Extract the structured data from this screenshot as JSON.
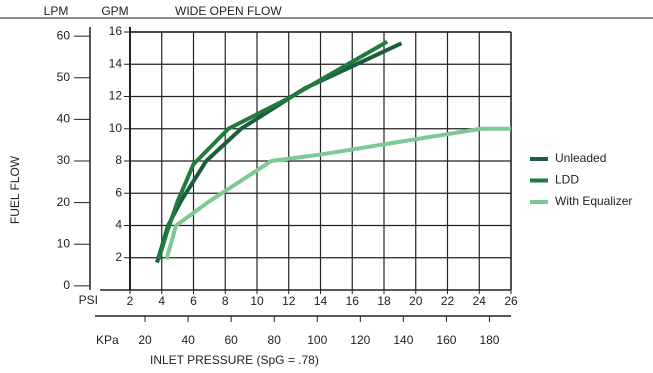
{
  "chart_data": {
    "type": "line",
    "title": "WIDE OPEN FLOW",
    "y_label": "FUEL FLOW",
    "x_label": "INLET PRESSURE (SpG = .78)",
    "y_unit": "GPM",
    "y2_unit": "LPM",
    "x_unit": "PSI",
    "x2_unit": "KPa",
    "xlim": [
      2,
      26
    ],
    "xticks": [
      2,
      4,
      6,
      8,
      10,
      12,
      14,
      16,
      18,
      20,
      22,
      24,
      26
    ],
    "x2lim": [
      13,
      190
    ],
    "x2ticks": [
      20,
      40,
      60,
      80,
      100,
      120,
      140,
      160,
      180
    ],
    "ylim": [
      0,
      16
    ],
    "yticks": [
      2,
      4,
      6,
      8,
      10,
      12,
      14,
      16
    ],
    "y2lim": [
      -1,
      61
    ],
    "y2ticks": [
      0,
      10,
      20,
      30,
      40,
      50,
      60
    ],
    "grid": true,
    "legend": "right",
    "series": [
      {
        "name": "Unleaded",
        "color": "#1b5e3b",
        "x": [
          3.7,
          4.4,
          5.2,
          6.8,
          9,
          13,
          19.1
        ],
        "values": [
          1.7,
          4,
          5.5,
          8,
          10,
          12.5,
          15.3
        ]
      },
      {
        "name": "LDD",
        "color": "#1f7a3e",
        "x": [
          3.8,
          4.3,
          5,
          6,
          8.2,
          12,
          18.2
        ],
        "values": [
          1.9,
          3.5,
          5.5,
          7.8,
          10,
          11.9,
          15.4
        ]
      },
      {
        "name": "With Equalizer",
        "color": "#7cc995",
        "x": [
          4.3,
          4.9,
          7,
          10.9,
          14,
          24.1,
          26
        ],
        "values": [
          1.9,
          4,
          5.5,
          8,
          8.4,
          10,
          10
        ]
      }
    ]
  }
}
